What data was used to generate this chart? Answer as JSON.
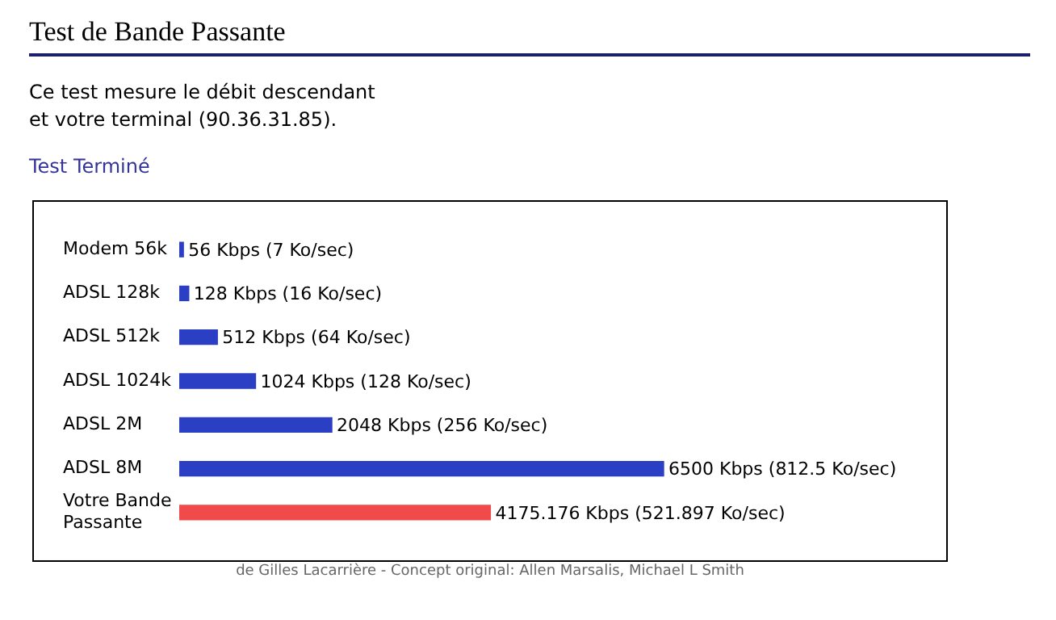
{
  "chart_data": {
    "type": "bar",
    "orientation": "horizontal",
    "title": "Test de Bande Passante",
    "subtitle": "Ce test mesure le débit descendant",
    "annotations": [
      "et votre terminal (90.36.31.85).",
      "Test Terminé",
      "de Gilles Lacarrière - Concept original: Allen Marsalis, Michael L Smith"
    ],
    "categories": [
      "Modem 56k",
      "ADSL 128k",
      "ADSL 512k",
      "ADSL 1024k",
      "ADSL 2M",
      "ADSL 8M",
      "Votre Bande Passante"
    ],
    "values": [
      56,
      128,
      512,
      1024,
      2048,
      6500,
      4175.176
    ],
    "colors": [
      "#2a3fc4",
      "#2a3fc4",
      "#2a3fc4",
      "#2a3fc4",
      "#2a3fc4",
      "#2a3fc4",
      "#f04a4a"
    ],
    "value_labels": [
      "56 Kbps (7 Ko/sec)",
      "128 Kbps (16 Ko/sec)",
      "512 Kbps (64 Ko/sec)",
      "1024 Kbps (128 Ko/sec)",
      "2048 Kbps (256 Ko/sec)",
      "6500 Kbps (812.5 Ko/sec)",
      "4175.176 Kbps (521.897 Ko/sec)"
    ],
    "legend": false
  }
}
